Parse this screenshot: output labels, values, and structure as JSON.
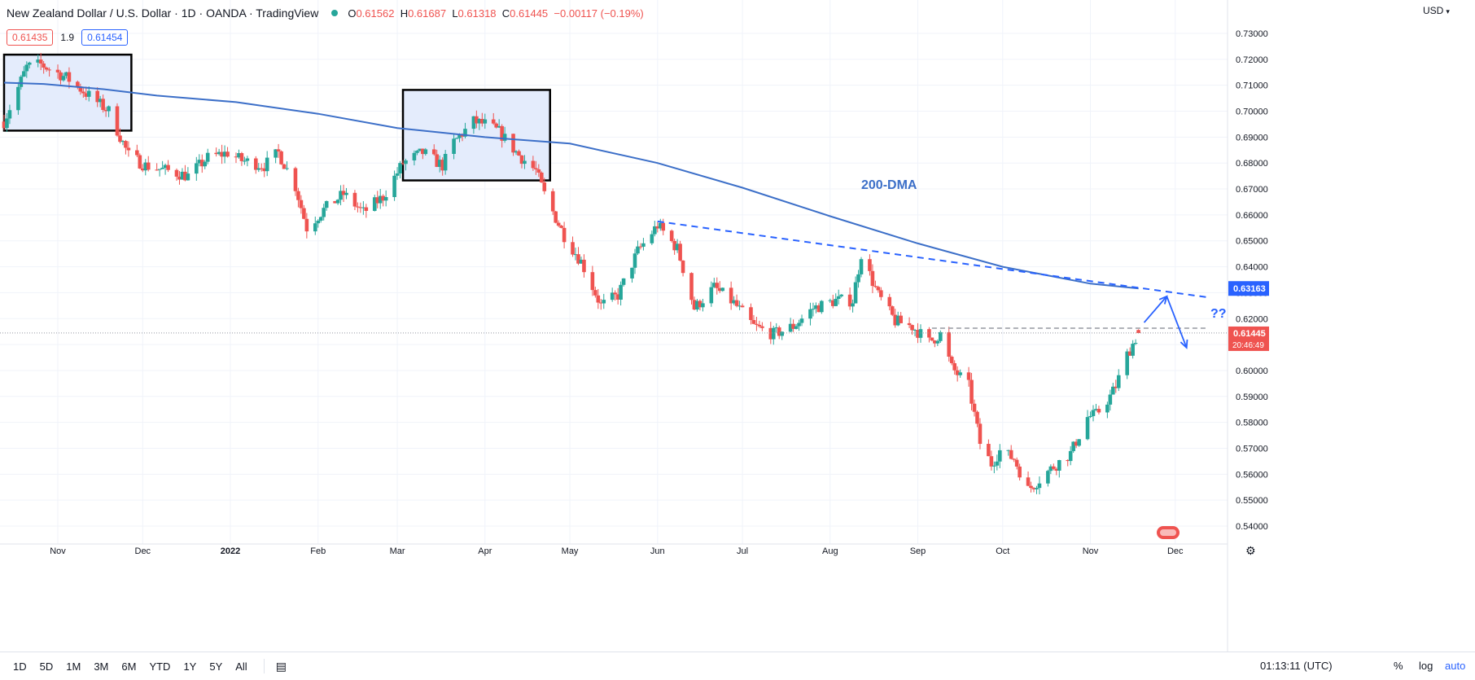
{
  "header": {
    "title": "New Zealand Dollar / U.S. Dollar · 1D · OANDA · TradingView",
    "ohlc": {
      "o": "0.61562",
      "h": "0.61687",
      "l": "0.61318",
      "c": "0.61445",
      "chg": "−0.00117 (−0.19%)"
    }
  },
  "quote": {
    "bid": "0.61435",
    "spread": "1.9",
    "ask": "0.61454"
  },
  "currency": "USD",
  "toolbar": {
    "ranges": [
      "1D",
      "5D",
      "1M",
      "3M",
      "6M",
      "YTD",
      "1Y",
      "5Y",
      "All"
    ],
    "clock": "01:13:11 (UTC)",
    "percent": "%",
    "log": "log",
    "auto": "auto"
  },
  "colors": {
    "up": "#26a69a",
    "down": "#ef5350",
    "dma": "#3c6fc8",
    "box_fill": "#e4ecfc"
  },
  "chart_data": {
    "type": "candlestick",
    "ylim": [
      0.535,
      0.735
    ],
    "yticks": [
      "0.73000",
      "0.72000",
      "0.71000",
      "0.70000",
      "0.69000",
      "0.68000",
      "0.67000",
      "0.66000",
      "0.65000",
      "0.64000",
      "0.63000",
      "0.62000",
      "0.61000",
      "0.60000",
      "0.59000",
      "0.58000",
      "0.57000",
      "0.56000",
      "0.55000",
      "0.54000"
    ],
    "xlabels": [
      {
        "t": "Nov",
        "date": "2021-11-01"
      },
      {
        "t": "Dec",
        "date": "2021-12-01"
      },
      {
        "t": "2022",
        "date": "2022-01-01"
      },
      {
        "t": "Feb",
        "date": "2022-02-01"
      },
      {
        "t": "Mar",
        "date": "2022-03-01"
      },
      {
        "t": "Apr",
        "date": "2022-04-01"
      },
      {
        "t": "May",
        "date": "2022-05-01"
      },
      {
        "t": "Jun",
        "date": "2022-06-01"
      },
      {
        "t": "Jul",
        "date": "2022-07-01"
      },
      {
        "t": "Aug",
        "date": "2022-08-01"
      },
      {
        "t": "Sep",
        "date": "2022-09-01"
      },
      {
        "t": "Oct",
        "date": "2022-10-01"
      },
      {
        "t": "Nov",
        "date": "2022-11-01"
      },
      {
        "t": "Dec",
        "date": "2022-12-01"
      }
    ],
    "price_path": [
      [
        "2021-10-13",
        0.696
      ],
      [
        "2021-10-21",
        0.717
      ],
      [
        "2021-10-26",
        0.718
      ],
      [
        "2021-11-04",
        0.713
      ],
      [
        "2021-11-12",
        0.706
      ],
      [
        "2021-11-19",
        0.7
      ],
      [
        "2021-11-26",
        0.683
      ],
      [
        "2021-12-02",
        0.679
      ],
      [
        "2021-12-10",
        0.677
      ],
      [
        "2021-12-17",
        0.675
      ],
      [
        "2021-12-24",
        0.682
      ],
      [
        "2021-12-31",
        0.684
      ],
      [
        "2022-01-05",
        0.681
      ],
      [
        "2022-01-13",
        0.679
      ],
      [
        "2022-01-18",
        0.684
      ],
      [
        "2022-01-24",
        0.671
      ],
      [
        "2022-01-28",
        0.655
      ],
      [
        "2022-02-03",
        0.662
      ],
      [
        "2022-02-10",
        0.668
      ],
      [
        "2022-02-17",
        0.661
      ],
      [
        "2022-02-24",
        0.667
      ],
      [
        "2022-03-03",
        0.68
      ],
      [
        "2022-03-10",
        0.684
      ],
      [
        "2022-03-17",
        0.679
      ],
      [
        "2022-03-21",
        0.688
      ],
      [
        "2022-03-28",
        0.696
      ],
      [
        "2022-04-01",
        0.695
      ],
      [
        "2022-04-06",
        0.692
      ],
      [
        "2022-04-13",
        0.683
      ],
      [
        "2022-04-19",
        0.677
      ],
      [
        "2022-04-22",
        0.668
      ],
      [
        "2022-04-29",
        0.652
      ],
      [
        "2022-05-05",
        0.642
      ],
      [
        "2022-05-12",
        0.625
      ],
      [
        "2022-05-18",
        0.629
      ],
      [
        "2022-05-25",
        0.646
      ],
      [
        "2022-06-01",
        0.656
      ],
      [
        "2022-06-08",
        0.647
      ],
      [
        "2022-06-14",
        0.624
      ],
      [
        "2022-06-21",
        0.632
      ],
      [
        "2022-06-28",
        0.626
      ],
      [
        "2022-07-05",
        0.617
      ],
      [
        "2022-07-12",
        0.614
      ],
      [
        "2022-07-19",
        0.617
      ],
      [
        "2022-07-26",
        0.624
      ],
      [
        "2022-08-03",
        0.627
      ],
      [
        "2022-08-09",
        0.627
      ],
      [
        "2022-08-12",
        0.645
      ],
      [
        "2022-08-18",
        0.629
      ],
      [
        "2022-08-24",
        0.619
      ],
      [
        "2022-08-30",
        0.617
      ],
      [
        "2022-09-05",
        0.611
      ],
      [
        "2022-09-09",
        0.614
      ],
      [
        "2022-09-13",
        0.601
      ],
      [
        "2022-09-19",
        0.594
      ],
      [
        "2022-09-23",
        0.572
      ],
      [
        "2022-09-27",
        0.564
      ],
      [
        "2022-09-30",
        0.569
      ],
      [
        "2022-10-05",
        0.566
      ],
      [
        "2022-10-10",
        0.554
      ],
      [
        "2022-10-13",
        0.557
      ],
      [
        "2022-10-19",
        0.563
      ],
      [
        "2022-10-25",
        0.568
      ],
      [
        "2022-10-31",
        0.582
      ],
      [
        "2022-11-03",
        0.583
      ],
      [
        "2022-11-08",
        0.59
      ],
      [
        "2022-11-10",
        0.594
      ],
      [
        "2022-11-14",
        0.606
      ],
      [
        "2022-11-18",
        0.6145
      ]
    ],
    "dma_200": [
      [
        "2021-10-13",
        0.711
      ],
      [
        "2021-10-27",
        0.7105
      ],
      [
        "2021-11-17",
        0.7085
      ],
      [
        "2021-12-06",
        0.706
      ],
      [
        "2022-01-03",
        0.7035
      ],
      [
        "2022-02-01",
        0.699
      ],
      [
        "2022-03-01",
        0.6935
      ],
      [
        "2022-04-01",
        0.69
      ],
      [
        "2022-05-01",
        0.6875
      ],
      [
        "2022-06-01",
        0.68
      ],
      [
        "2022-07-01",
        0.6705
      ],
      [
        "2022-08-01",
        0.6595
      ],
      [
        "2022-09-01",
        0.649
      ],
      [
        "2022-10-01",
        0.64
      ],
      [
        "2022-11-01",
        0.6335
      ],
      [
        "2022-11-18",
        0.63163
      ]
    ],
    "annotations": {
      "dma_label": "200-DMA",
      "question": "??",
      "dma_price": "0.63163",
      "last_price": "0.61445",
      "countdown": "20:46:49",
      "boxes": [
        {
          "x0": "2021-10-13",
          "x1": "2021-11-27",
          "y0": 0.6925,
          "y1": 0.7218
        },
        {
          "x0": "2022-03-03",
          "x1": "2022-04-24",
          "y0": 0.6733,
          "y1": 0.7082
        }
      ],
      "trendline": [
        [
          "2022-06-01",
          0.6575
        ],
        [
          "2022-12-12",
          0.6283
        ]
      ],
      "resistance": [
        [
          "2022-09-06",
          0.6163
        ],
        [
          "2022-12-12",
          0.6163
        ]
      ],
      "arrow_up": [
        [
          "2022-11-20",
          0.6185
        ],
        [
          "2022-11-28",
          0.6286
        ]
      ],
      "arrow_down": [
        [
          "2022-11-28",
          0.6286
        ],
        [
          "2022-12-05",
          0.6088
        ]
      ]
    }
  }
}
